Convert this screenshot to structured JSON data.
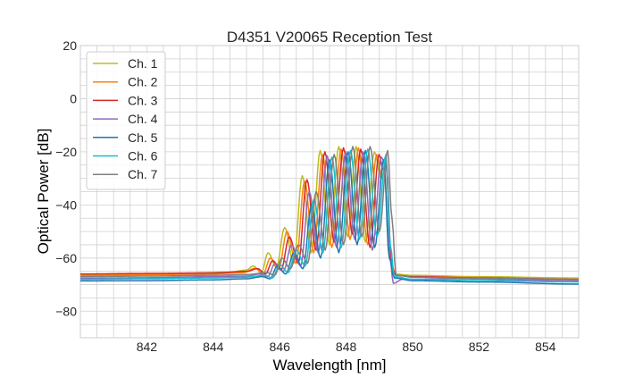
{
  "chart_data": {
    "type": "line",
    "title": "D4351 V20065 Reception Test",
    "xlabel": "Wavelength [nm]",
    "ylabel": "Optical Power [dB]",
    "xlim": [
      840,
      855
    ],
    "ylim": [
      -90,
      20
    ],
    "xticks": [
      "842",
      "844",
      "846",
      "848",
      "850",
      "852",
      "854"
    ],
    "xtick_values": [
      842,
      844,
      846,
      848,
      850,
      852,
      854
    ],
    "yticks": [
      "20",
      "0",
      "−20",
      "−40",
      "−60",
      "−80"
    ],
    "ytick_values": [
      20,
      0,
      -20,
      -40,
      -60,
      -80
    ],
    "grid": true,
    "minor_grid_step": {
      "x": 0.5,
      "y": 5
    },
    "legend_placement": "top-left",
    "series": [
      {
        "name": "Ch. 1",
        "color": "#bcbd22",
        "points": [
          [
            840,
            -66.2
          ],
          [
            841.5,
            -66.0
          ],
          [
            843,
            -65.8
          ],
          [
            844.5,
            -65.3
          ],
          [
            845,
            -64.5
          ],
          [
            845.2,
            -63.0
          ],
          [
            845.45,
            -65.5
          ],
          [
            845.65,
            -58.0
          ],
          [
            845.9,
            -63.5
          ],
          [
            846.15,
            -48.5
          ],
          [
            846.42,
            -62.0
          ],
          [
            846.68,
            -29.0
          ],
          [
            846.95,
            -58.0
          ],
          [
            847.22,
            -19.5
          ],
          [
            847.5,
            -55.0
          ],
          [
            847.78,
            -18.0
          ],
          [
            848.05,
            -52.0
          ],
          [
            848.3,
            -18.0
          ],
          [
            848.58,
            -54.0
          ],
          [
            848.85,
            -20.0
          ],
          [
            849.05,
            -30.0
          ],
          [
            849.15,
            -27.0
          ],
          [
            849.3,
            -60.0
          ],
          [
            849.45,
            -66.0
          ],
          [
            850,
            -66.5
          ],
          [
            852,
            -67.0
          ],
          [
            855,
            -67.5
          ]
        ]
      },
      {
        "name": "Ch. 2",
        "color": "#ff7f0e",
        "points": [
          [
            840,
            -66.6
          ],
          [
            842,
            -66.3
          ],
          [
            844,
            -66.0
          ],
          [
            844.9,
            -65.5
          ],
          [
            845.27,
            -63.8
          ],
          [
            845.5,
            -66
          ],
          [
            845.72,
            -60
          ],
          [
            845.97,
            -64
          ],
          [
            846.22,
            -50
          ],
          [
            846.49,
            -62
          ],
          [
            846.75,
            -31
          ],
          [
            847.02,
            -58
          ],
          [
            847.29,
            -21
          ],
          [
            847.57,
            -56
          ],
          [
            847.85,
            -19
          ],
          [
            848.12,
            -53
          ],
          [
            848.37,
            -18.5
          ],
          [
            848.65,
            -55
          ],
          [
            848.92,
            -21
          ],
          [
            849.08,
            -30
          ],
          [
            849.2,
            -24
          ],
          [
            849.36,
            -62
          ],
          [
            849.5,
            -66.5
          ],
          [
            850,
            -67
          ],
          [
            852,
            -67.3
          ],
          [
            855,
            -68
          ]
        ]
      },
      {
        "name": "Ch. 3",
        "color": "#d62728",
        "points": [
          [
            840,
            -66
          ],
          [
            842,
            -65.8
          ],
          [
            844,
            -65.6
          ],
          [
            845,
            -65
          ],
          [
            845.34,
            -64
          ],
          [
            845.57,
            -66
          ],
          [
            845.79,
            -61
          ],
          [
            846.04,
            -64.5
          ],
          [
            846.29,
            -52
          ],
          [
            846.56,
            -62
          ],
          [
            846.82,
            -30.5
          ],
          [
            847.09,
            -57
          ],
          [
            847.36,
            -20
          ],
          [
            847.64,
            -54
          ],
          [
            847.92,
            -18.5
          ],
          [
            848.19,
            -51
          ],
          [
            848.44,
            -19
          ],
          [
            848.72,
            -56
          ],
          [
            848.99,
            -21
          ],
          [
            849.12,
            -27
          ],
          [
            849.22,
            -25
          ],
          [
            849.36,
            -63
          ],
          [
            849.5,
            -66.5
          ],
          [
            850,
            -67
          ],
          [
            852,
            -67.5
          ],
          [
            855,
            -68
          ]
        ]
      },
      {
        "name": "Ch. 4",
        "color": "#9467bd",
        "points": [
          [
            840,
            -67.6
          ],
          [
            842,
            -67.4
          ],
          [
            844,
            -67
          ],
          [
            845,
            -66.8
          ],
          [
            845.41,
            -66
          ],
          [
            845.64,
            -67
          ],
          [
            845.86,
            -62
          ],
          [
            846.11,
            -65
          ],
          [
            846.36,
            -55
          ],
          [
            846.63,
            -63
          ],
          [
            846.89,
            -35
          ],
          [
            847.16,
            -58
          ],
          [
            847.43,
            -21.5
          ],
          [
            847.71,
            -56
          ],
          [
            847.99,
            -20
          ],
          [
            848.26,
            -53
          ],
          [
            848.51,
            -20
          ],
          [
            848.79,
            -57
          ],
          [
            849.06,
            -22
          ],
          [
            849.22,
            -27
          ],
          [
            849.32,
            -60
          ],
          [
            849.42,
            -69.5
          ],
          [
            849.7,
            -68
          ],
          [
            851,
            -67.8
          ],
          [
            855,
            -68.5
          ]
        ]
      },
      {
        "name": "Ch. 5",
        "color": "#1f77b4",
        "points": [
          [
            840,
            -68.6
          ],
          [
            842,
            -68.5
          ],
          [
            844,
            -68.2
          ],
          [
            845,
            -67.8
          ],
          [
            845.48,
            -67
          ],
          [
            845.71,
            -67.8
          ],
          [
            845.93,
            -63
          ],
          [
            846.18,
            -66
          ],
          [
            846.43,
            -58
          ],
          [
            846.7,
            -64
          ],
          [
            846.96,
            -40
          ],
          [
            847.23,
            -60
          ],
          [
            847.5,
            -23
          ],
          [
            847.78,
            -58
          ],
          [
            848.06,
            -20
          ],
          [
            848.33,
            -55
          ],
          [
            848.58,
            -19.5
          ],
          [
            848.86,
            -56
          ],
          [
            849.13,
            -23
          ],
          [
            849.3,
            -60
          ],
          [
            849.45,
            -67.5
          ],
          [
            850,
            -68.5
          ],
          [
            852,
            -69
          ],
          [
            855,
            -69.8
          ]
        ]
      },
      {
        "name": "Ch. 6",
        "color": "#17becf",
        "points": [
          [
            840,
            -68
          ],
          [
            842,
            -67.8
          ],
          [
            844,
            -67.5
          ],
          [
            845,
            -67.2
          ],
          [
            845.55,
            -66.5
          ],
          [
            845.78,
            -67.5
          ],
          [
            846.0,
            -62.5
          ],
          [
            846.25,
            -65.5
          ],
          [
            846.5,
            -57
          ],
          [
            846.77,
            -63
          ],
          [
            847.03,
            -38
          ],
          [
            847.3,
            -58
          ],
          [
            847.57,
            -22
          ],
          [
            847.85,
            -56
          ],
          [
            848.13,
            -19.5
          ],
          [
            848.4,
            -53
          ],
          [
            848.65,
            -19
          ],
          [
            848.93,
            -52
          ],
          [
            849.2,
            -21
          ],
          [
            849.33,
            -55
          ],
          [
            849.45,
            -67
          ],
          [
            850,
            -68
          ],
          [
            852,
            -68.5
          ],
          [
            855,
            -69
          ]
        ]
      },
      {
        "name": "Ch. 7",
        "color": "#7f7f7f",
        "points": [
          [
            840,
            -67
          ],
          [
            842,
            -66.8
          ],
          [
            844,
            -66.5
          ],
          [
            845,
            -66.2
          ],
          [
            845.62,
            -65.5
          ],
          [
            845.85,
            -66.5
          ],
          [
            846.07,
            -60
          ],
          [
            846.32,
            -64
          ],
          [
            846.57,
            -55
          ],
          [
            846.84,
            -62
          ],
          [
            847.1,
            -35
          ],
          [
            847.37,
            -57
          ],
          [
            847.64,
            -21
          ],
          [
            847.92,
            -55
          ],
          [
            848.2,
            -18
          ],
          [
            848.47,
            -52
          ],
          [
            848.72,
            -18
          ],
          [
            849.0,
            -50
          ],
          [
            849.25,
            -19.5
          ],
          [
            849.38,
            -45
          ],
          [
            849.5,
            -66.5
          ],
          [
            850,
            -67.2
          ],
          [
            852,
            -67.6
          ],
          [
            855,
            -68
          ]
        ]
      }
    ]
  }
}
